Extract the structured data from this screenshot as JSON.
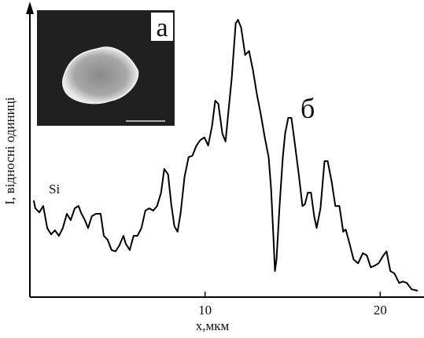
{
  "chart_data": {
    "type": "line",
    "xlabel": "x,мкм",
    "ylabel": "I, відносні одиниці",
    "annotations": [
      "Si",
      "б",
      "а"
    ],
    "color": "#000000",
    "xlim": [
      0,
      22.5
    ],
    "xticks": [
      10,
      20
    ],
    "ylim": [
      0,
      100
    ],
    "x": [
      0.22,
      0.31,
      0.54,
      0.76,
      0.99,
      1.21,
      1.43,
      1.66,
      1.88,
      2.11,
      2.33,
      2.56,
      2.78,
      2.91,
      3.14,
      3.32,
      3.54,
      3.77,
      4.04,
      4.22,
      4.44,
      4.66,
      4.89,
      5.11,
      5.34,
      5.47,
      5.7,
      5.92,
      6.14,
      6.37,
      6.59,
      6.82,
      7.04,
      7.26,
      7.49,
      7.67,
      7.89,
      8.07,
      8.25,
      8.43,
      8.61,
      8.83,
      9.06,
      9.28,
      9.51,
      9.73,
      9.96,
      10.18,
      10.4,
      10.58,
      10.76,
      10.99,
      11.17,
      11.3,
      11.52,
      11.75,
      11.88,
      12.06,
      12.29,
      12.51,
      12.74,
      12.96,
      13.18,
      13.41,
      13.63,
      13.77,
      13.9,
      13.99,
      14.08,
      14.26,
      14.44,
      14.57,
      14.75,
      14.93,
      15.11,
      15.34,
      15.56,
      15.7,
      15.87,
      16.05,
      16.23,
      16.37,
      16.59,
      16.82,
      17.0,
      17.22,
      17.44,
      17.67,
      17.89,
      18.03,
      18.25,
      18.48,
      18.74,
      19.01,
      19.24,
      19.46,
      19.69,
      19.91,
      20.18,
      20.36,
      20.58,
      20.81,
      21.08,
      21.3,
      21.52,
      21.79,
      22.15
    ],
    "values": [
      33.4,
      30.7,
      29.3,
      31.5,
      23.9,
      21.7,
      23.1,
      21.2,
      23.9,
      28.8,
      26.6,
      30.7,
      31.5,
      29.3,
      26.6,
      23.9,
      28.0,
      28.8,
      28.8,
      21.2,
      19.8,
      16.3,
      15.8,
      17.9,
      21.2,
      18.5,
      16.3,
      21.2,
      21.2,
      23.9,
      29.9,
      30.7,
      29.9,
      31.5,
      36.1,
      44.3,
      42.4,
      32.1,
      24.5,
      22.6,
      29.3,
      41.6,
      48.4,
      48.9,
      52.4,
      54.3,
      55.2,
      52.4,
      59.2,
      67.9,
      66.8,
      56.5,
      53.8,
      62.0,
      75.5,
      94.6,
      95.9,
      93.2,
      83.7,
      85.1,
      78.3,
      70.1,
      63.3,
      55.2,
      48.4,
      37.5,
      21.2,
      9.0,
      13.0,
      32.1,
      48.4,
      56.5,
      62.0,
      62.0,
      53.8,
      42.9,
      31.5,
      32.1,
      36.1,
      36.1,
      28.0,
      23.9,
      30.7,
      47.0,
      47.0,
      40.2,
      31.5,
      31.5,
      22.6,
      23.4,
      18.5,
      13.0,
      11.7,
      15.2,
      14.4,
      10.3,
      10.9,
      11.7,
      14.4,
      15.8,
      9.0,
      8.2,
      4.9,
      5.4,
      4.9,
      2.7,
      2.2
    ]
  }
}
